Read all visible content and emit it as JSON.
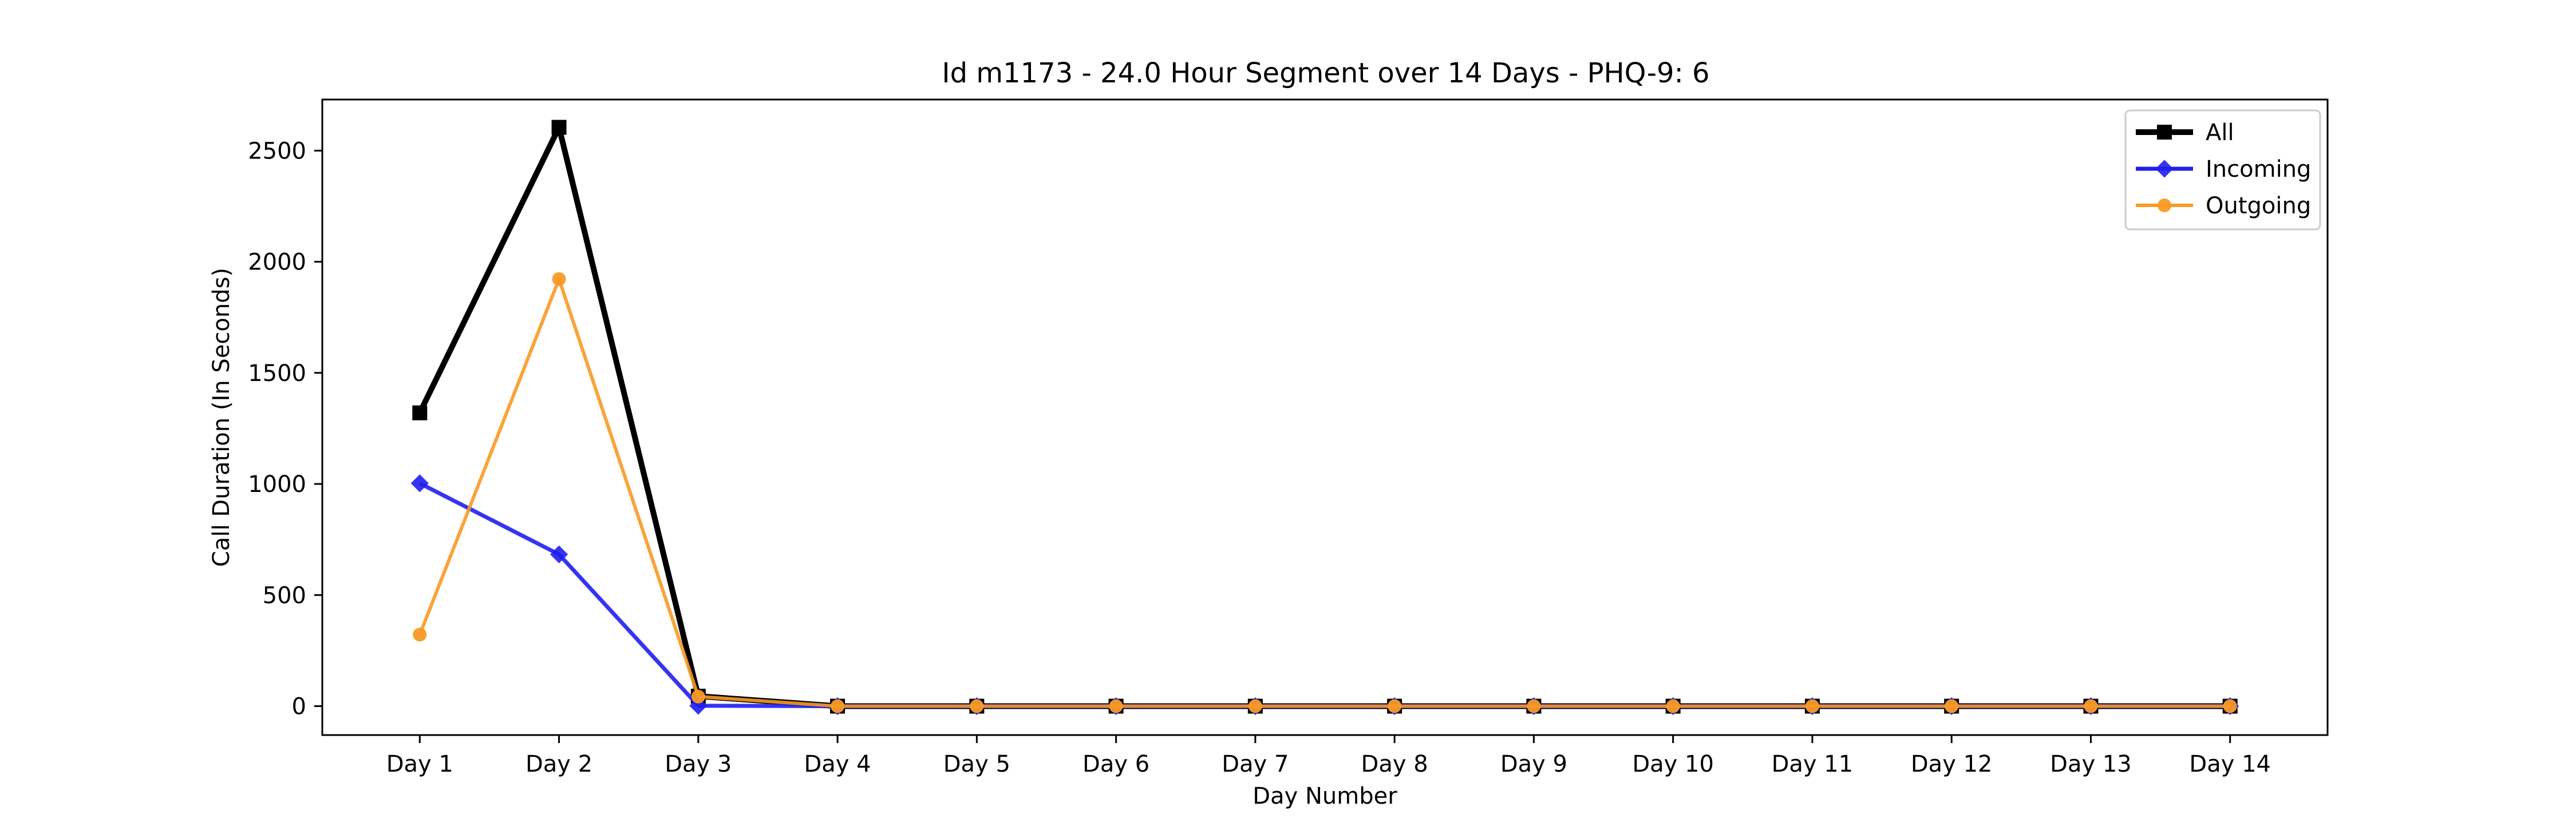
{
  "chart_data": {
    "type": "line",
    "title": "Id m1173 - 24.0 Hour Segment over 14 Days - PHQ-9: 6",
    "xlabel": "Day Number",
    "ylabel": "Call Duration (In Seconds)",
    "categories": [
      "Day 1",
      "Day 2",
      "Day 3",
      "Day 4",
      "Day 5",
      "Day 6",
      "Day 7",
      "Day 8",
      "Day 9",
      "Day 10",
      "Day 11",
      "Day 12",
      "Day 13",
      "Day 14"
    ],
    "ylim": [
      -130,
      2730
    ],
    "yticks": [
      0,
      500,
      1000,
      1500,
      2000,
      2500
    ],
    "grid": false,
    "legend_position": "top-right",
    "series": [
      {
        "name": "All",
        "color": "#000000",
        "marker": "square",
        "values": [
          1320,
          2605,
          45,
          0,
          0,
          0,
          0,
          0,
          0,
          0,
          0,
          0,
          0,
          0
        ]
      },
      {
        "name": "Incoming",
        "color": "#1f1fee",
        "marker": "diamond",
        "values": [
          1003,
          683,
          2,
          0,
          0,
          0,
          0,
          0,
          0,
          0,
          0,
          0,
          0,
          0
        ]
      },
      {
        "name": "Outgoing",
        "color": "#f89a24",
        "marker": "circle",
        "values": [
          322,
          1922,
          43,
          0,
          0,
          0,
          0,
          0,
          0,
          0,
          0,
          0,
          0,
          0
        ]
      }
    ]
  }
}
